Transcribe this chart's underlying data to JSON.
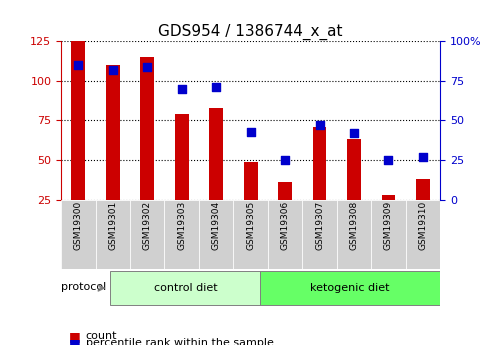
{
  "title": "GDS954 / 1386744_x_at",
  "samples": [
    "GSM19300",
    "GSM19301",
    "GSM19302",
    "GSM19303",
    "GSM19304",
    "GSM19305",
    "GSM19306",
    "GSM19307",
    "GSM19308",
    "GSM19309",
    "GSM19310"
  ],
  "count": [
    125,
    110,
    115,
    79,
    83,
    49,
    36,
    71,
    63,
    28,
    38
  ],
  "percentile": [
    85,
    82,
    84,
    70,
    71,
    43,
    25,
    47,
    42,
    25,
    27
  ],
  "ylim_left": [
    25,
    125
  ],
  "ylim_right": [
    0,
    100
  ],
  "yticks_left": [
    25,
    50,
    75,
    100,
    125
  ],
  "yticks_right": [
    0,
    25,
    50,
    75,
    100
  ],
  "yticklabels_right": [
    "0",
    "25",
    "50",
    "75",
    "100%"
  ],
  "bar_color": "#cc0000",
  "dot_color": "#0000cc",
  "bg_plot": "#f0f0f0",
  "control_diet_color": "#ccffcc",
  "ketogenic_diet_color": "#66ff66",
  "control_diet_label": "control diet",
  "ketogenic_diet_label": "ketogenic diet",
  "protocol_label": "protocol",
  "legend_count": "count",
  "legend_percentile": "percentile rank within the sample",
  "control_samples": 5,
  "ketogenic_samples": 6,
  "bar_width": 0.4,
  "dot_size": 30
}
